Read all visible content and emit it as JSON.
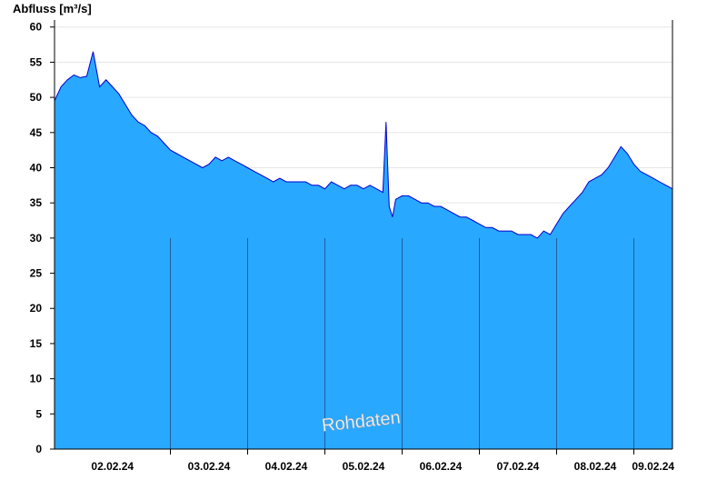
{
  "chart_data": {
    "type": "area",
    "ylabel": "Abfluss [m³/s]",
    "watermark": "Rohdaten",
    "ylim": [
      0,
      61
    ],
    "yticks": [
      0,
      5,
      10,
      15,
      20,
      25,
      30,
      35,
      40,
      45,
      50,
      55,
      60
    ],
    "xlim": [
      "01.02.24 12:00",
      "09.02.24 12:00"
    ],
    "xticks": [
      {
        "label": "02.02.24"
      },
      {
        "label": "03.02.24"
      },
      {
        "label": "04.02.24"
      },
      {
        "label": "05.02.24"
      },
      {
        "label": "06.02.24"
      },
      {
        "label": "07.02.24"
      },
      {
        "label": "08.02.24"
      },
      {
        "label": "09.02.24"
      }
    ],
    "day_boundaries": [
      "02.02.24 24:00",
      "03.02.24 24:00",
      "04.02.24 24:00",
      "05.02.24 24:00",
      "06.02.24 24:00",
      "07.02.24 24:00",
      "08.02.24 24:00"
    ],
    "grid": true,
    "fill_color": "#29a8ff",
    "line_color": "#0000cc",
    "series": [
      {
        "x": [
          "01.02.24 12:00",
          "01.02.24 14:00",
          "01.02.24 16:00",
          "01.02.24 18:00",
          "01.02.24 20:00",
          "01.02.24 22:00",
          "02.02.24 00:00",
          "02.02.24 02:00",
          "02.02.24 04:00",
          "02.02.24 06:00",
          "02.02.24 08:00",
          "02.02.24 10:00",
          "02.02.24 12:00",
          "02.02.24 14:00",
          "02.02.24 16:00",
          "02.02.24 18:00",
          "02.02.24 20:00",
          "02.02.24 22:00",
          "03.02.24 00:00",
          "03.02.24 02:00",
          "03.02.24 04:00",
          "03.02.24 06:00",
          "03.02.24 08:00",
          "03.02.24 10:00",
          "03.02.24 12:00",
          "03.02.24 14:00",
          "03.02.24 16:00",
          "03.02.24 18:00",
          "03.02.24 20:00",
          "03.02.24 22:00",
          "04.02.24 00:00",
          "04.02.24 02:00",
          "04.02.24 04:00",
          "04.02.24 06:00",
          "04.02.24 08:00",
          "04.02.24 10:00",
          "04.02.24 12:00",
          "04.02.24 14:00",
          "04.02.24 16:00",
          "04.02.24 18:00",
          "04.02.24 20:00",
          "04.02.24 22:00",
          "05.02.24 00:00",
          "05.02.24 02:00",
          "05.02.24 04:00",
          "05.02.24 06:00",
          "05.02.24 08:00",
          "05.02.24 10:00",
          "05.02.24 12:00",
          "05.02.24 14:00",
          "05.02.24 16:00",
          "05.02.24 18:00",
          "05.02.24 19:00",
          "05.02.24 20:00",
          "05.02.24 21:00",
          "05.02.24 22:00",
          "06.02.24 00:00",
          "06.02.24 02:00",
          "06.02.24 04:00",
          "06.02.24 06:00",
          "06.02.24 08:00",
          "06.02.24 10:00",
          "06.02.24 12:00",
          "06.02.24 14:00",
          "06.02.24 16:00",
          "06.02.24 18:00",
          "06.02.24 20:00",
          "06.02.24 22:00",
          "07.02.24 00:00",
          "07.02.24 02:00",
          "07.02.24 04:00",
          "07.02.24 06:00",
          "07.02.24 08:00",
          "07.02.24 10:00",
          "07.02.24 12:00",
          "07.02.24 14:00",
          "07.02.24 16:00",
          "07.02.24 18:00",
          "07.02.24 20:00",
          "07.02.24 22:00",
          "08.02.24 00:00",
          "08.02.24 02:00",
          "08.02.24 04:00",
          "08.02.24 06:00",
          "08.02.24 08:00",
          "08.02.24 10:00",
          "08.02.24 12:00",
          "08.02.24 14:00",
          "08.02.24 16:00",
          "08.02.24 18:00",
          "08.02.24 20:00",
          "08.02.24 22:00",
          "09.02.24 00:00",
          "09.02.24 02:00",
          "09.02.24 04:00",
          "09.02.24 06:00",
          "09.02.24 08:00",
          "09.02.24 10:00",
          "09.02.24 12:00"
        ],
        "y": [
          49.5,
          51.5,
          52.5,
          53.2,
          52.8,
          53.0,
          56.5,
          51.5,
          52.5,
          51.5,
          50.5,
          49.0,
          47.5,
          46.5,
          46.0,
          45.0,
          44.5,
          43.5,
          42.5,
          42.0,
          41.5,
          41.0,
          40.5,
          40.0,
          40.5,
          41.5,
          41.0,
          41.5,
          41.0,
          40.5,
          40.0,
          39.5,
          39.0,
          38.5,
          38.0,
          38.5,
          38.0,
          38.0,
          38.0,
          38.0,
          37.5,
          37.5,
          37.0,
          38.0,
          37.5,
          37.0,
          37.5,
          37.5,
          37.0,
          37.5,
          37.0,
          36.5,
          46.5,
          34.5,
          33.0,
          35.5,
          36.0,
          36.0,
          35.5,
          35.0,
          35.0,
          34.5,
          34.5,
          34.0,
          33.5,
          33.0,
          33.0,
          32.5,
          32.0,
          31.5,
          31.5,
          31.0,
          31.0,
          31.0,
          30.5,
          30.5,
          30.5,
          30.0,
          31.0,
          30.5,
          32.0,
          33.5,
          34.5,
          35.5,
          36.5,
          38.0,
          38.5,
          39.0,
          40.0,
          41.5,
          43.0,
          42.0,
          40.5,
          39.5,
          39.0,
          38.5,
          38.0,
          37.5,
          37.0
        ]
      }
    ]
  }
}
